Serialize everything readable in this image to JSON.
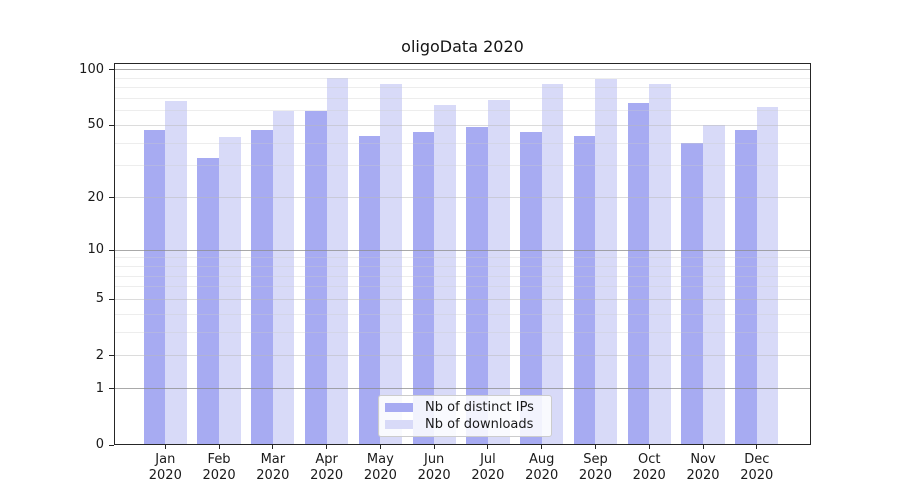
{
  "chart_data": {
    "type": "bar",
    "title": "oligoData 2020",
    "categories": [
      "Jan",
      "Feb",
      "Mar",
      "Apr",
      "May",
      "Jun",
      "Jul",
      "Aug",
      "Sep",
      "Oct",
      "Nov",
      "Dec"
    ],
    "x_year_label": "2020",
    "series": [
      {
        "name": "Nb of distinct IPs",
        "color": "#a7abf2",
        "values": [
          47,
          33,
          47,
          60,
          44,
          46,
          49,
          46,
          44,
          66,
          40,
          47
        ]
      },
      {
        "name": "Nb of downloads",
        "color": "#d8daf8",
        "values": [
          68,
          43,
          60,
          90,
          84,
          65,
          69,
          84,
          89,
          84,
          50,
          63
        ]
      }
    ],
    "yscale": "log10(1+y)",
    "ylim": [
      0,
      109
    ],
    "yticks": [
      0,
      1,
      2,
      5,
      10,
      20,
      50,
      100
    ],
    "grid": {
      "major": [
        1,
        10,
        100
      ],
      "mid": [
        2,
        5,
        20,
        50
      ],
      "minor": [
        3,
        4,
        6,
        7,
        8,
        9,
        30,
        40,
        60,
        70,
        80,
        90
      ]
    },
    "legend_position": "lower center",
    "grid_on": true
  },
  "colors": {
    "axis": "#262626",
    "grid_major": "rgba(140,140,140,0.75)",
    "grid_mid": "rgba(185,185,185,0.5)",
    "grid_minor": "rgba(204,204,204,0.35)",
    "legend_border": "#cccccc",
    "legend_background": "rgba(255,255,255,0.85)"
  }
}
